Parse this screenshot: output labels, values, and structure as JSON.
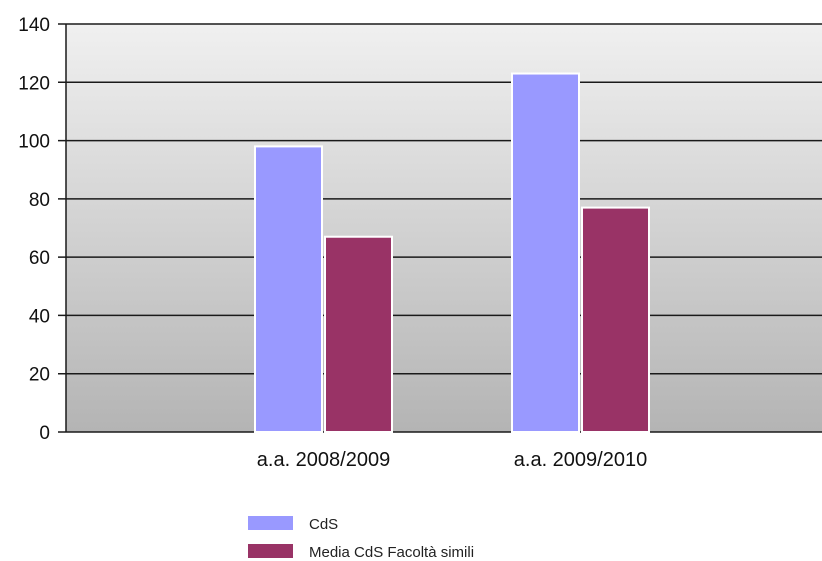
{
  "chart_data": {
    "type": "bar",
    "categories": [
      "a.a. 2008/2009",
      "a.a. 2009/2010"
    ],
    "series": [
      {
        "name": "CdS",
        "values": [
          98,
          123
        ],
        "color": "#9999ff"
      },
      {
        "name": "Media CdS Facoltà simili",
        "values": [
          67,
          77
        ],
        "color": "#993366"
      }
    ],
    "ylim": [
      0,
      140
    ],
    "yticks": [
      0,
      20,
      40,
      60,
      80,
      100,
      120,
      140
    ],
    "grid": true,
    "legend_position": "bottom",
    "background": "gradient-gray"
  }
}
